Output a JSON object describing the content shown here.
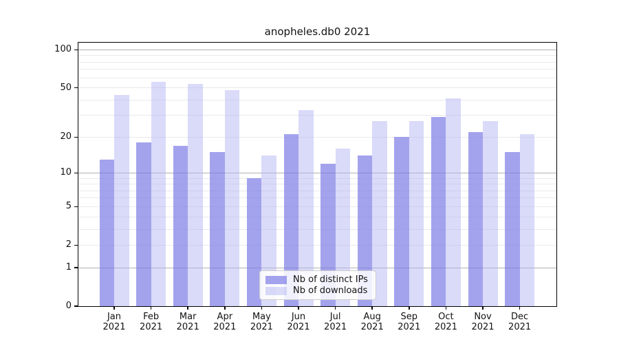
{
  "chart_data": {
    "type": "bar",
    "title": "anopheles.db0 2021",
    "categories": [
      "Jan",
      "Feb",
      "Mar",
      "Apr",
      "May",
      "Jun",
      "Jul",
      "Aug",
      "Sep",
      "Oct",
      "Nov",
      "Dec"
    ],
    "year_label": "2021",
    "series": [
      {
        "name": "Nb of distinct IPs",
        "key": "distinct-ips",
        "color": "rgba(124,124,230,0.70)",
        "values": [
          13,
          18,
          17,
          15,
          9,
          21,
          12,
          14,
          20,
          29,
          22,
          15
        ]
      },
      {
        "name": "Nb of downloads",
        "key": "downloads",
        "color": "rgba(178,178,242,0.48)",
        "values": [
          44,
          56,
          54,
          48,
          14,
          33,
          16,
          27,
          27,
          41,
          27,
          21
        ]
      }
    ],
    "yscale": "log1p",
    "ylim": [
      0,
      114
    ],
    "y_ticks": [
      0,
      1,
      2,
      5,
      10,
      20,
      50,
      100
    ],
    "major_gridlines": [
      1,
      10,
      100
    ],
    "minor_gridlines": [
      2,
      3,
      4,
      5,
      6,
      7,
      8,
      9,
      20,
      30,
      40,
      50,
      60,
      70,
      80,
      90
    ],
    "grid_on": true,
    "legend_position": "lower center",
    "colors": {
      "axis": "#000000",
      "text": "#111111",
      "grid_major": "#b0b0b0",
      "grid_minor": "#e9e9ee",
      "legend_border": "#cccccc"
    }
  }
}
